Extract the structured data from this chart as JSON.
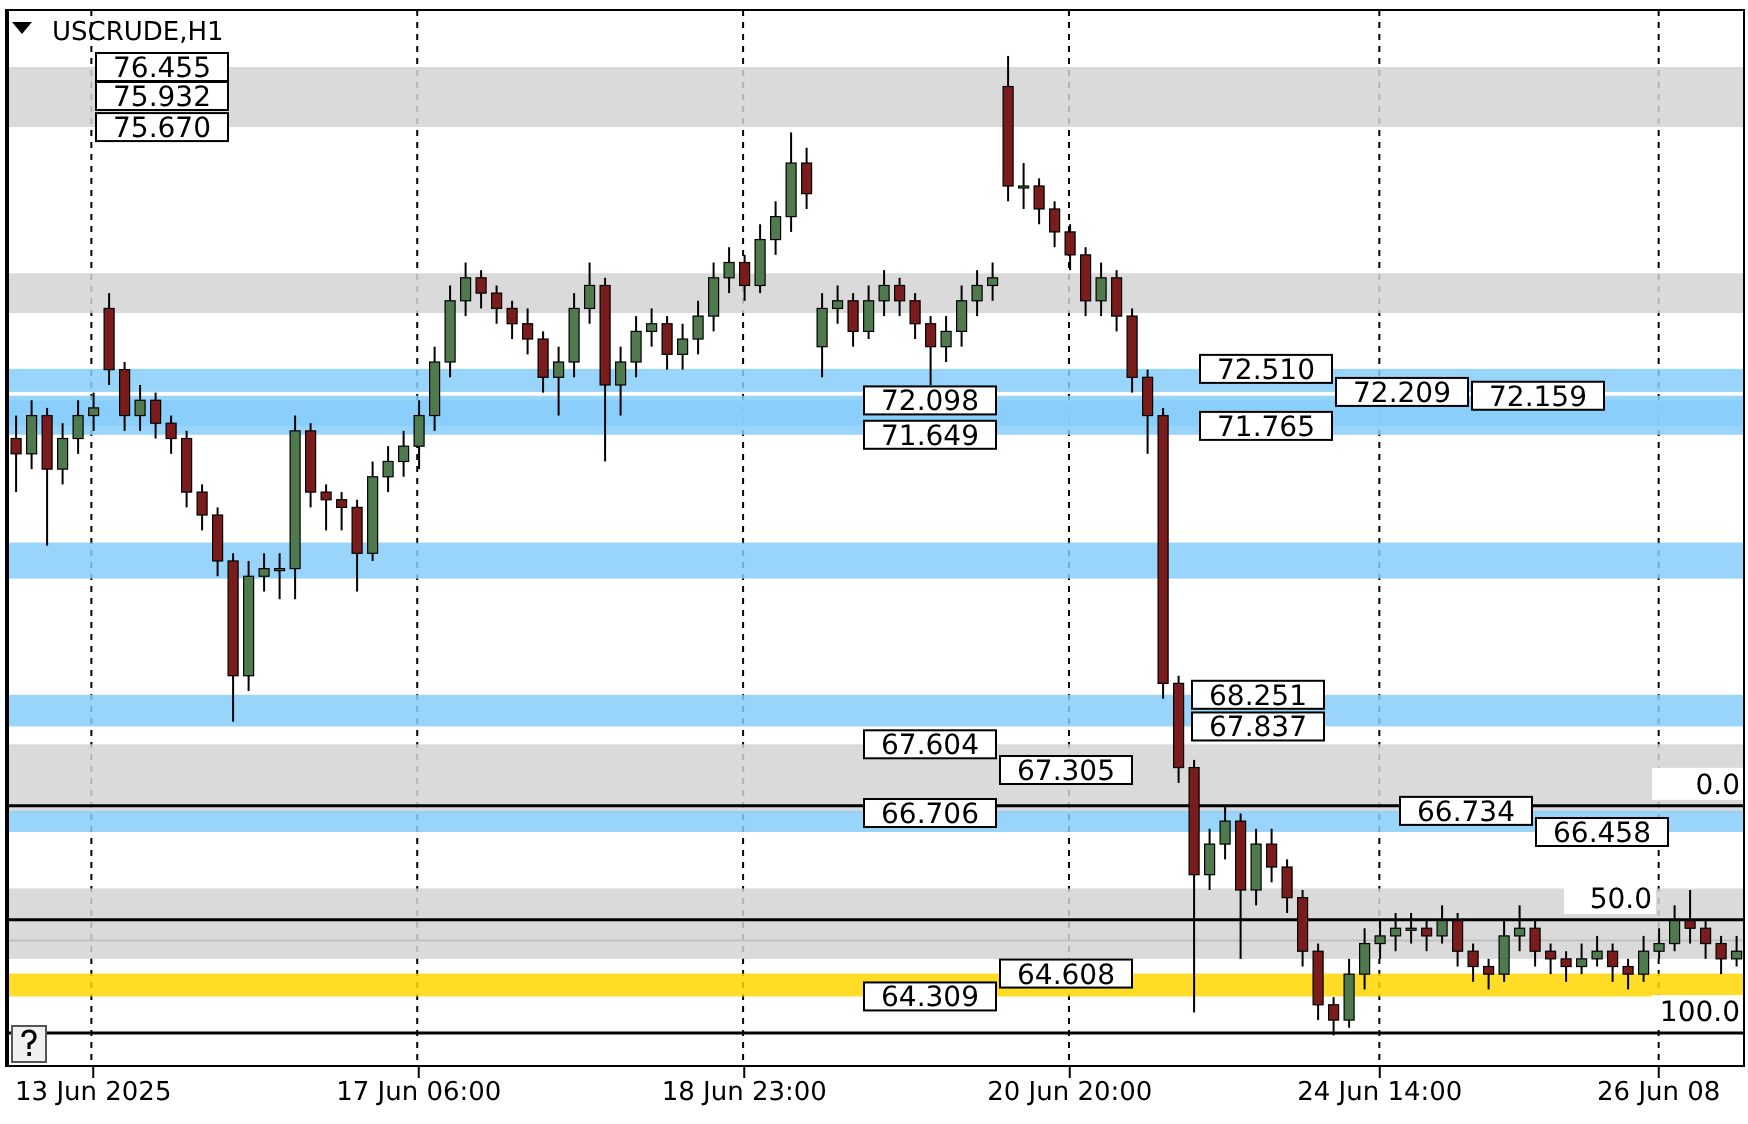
{
  "chart_data": {
    "type": "candlestick",
    "title": "USCRUDE,H1",
    "categories": [
      null,
      null,
      null,
      null,
      null,
      "13 Jun 2025",
      null,
      null,
      null,
      null,
      null,
      null,
      null,
      null,
      null,
      null,
      null,
      null,
      null,
      null,
      null,
      null,
      null,
      null,
      null,
      null,
      "17 Jun 06:00",
      null,
      null,
      null,
      null,
      null,
      null,
      null,
      null,
      null,
      null,
      null,
      null,
      null,
      null,
      null,
      null,
      null,
      null,
      null,
      null,
      "18 Jun 23:00",
      null,
      null,
      null,
      null,
      null,
      null,
      null,
      null,
      null,
      null,
      null,
      null,
      null,
      null,
      null,
      null,
      null,
      null,
      null,
      null,
      "20 Jun 20:00",
      null,
      null,
      null,
      null,
      null,
      null,
      null,
      null,
      null,
      null,
      null,
      null,
      null,
      null,
      null,
      null,
      null,
      null,
      null,
      "24 Jun 14:00",
      null,
      null,
      null,
      null,
      null,
      null,
      null,
      null,
      null,
      null,
      null,
      null,
      null,
      null,
      null,
      null,
      null,
      "26 Jun 08",
      null,
      null,
      null,
      null,
      null
    ],
    "ohlc": [
      [
        71.6,
        71.9,
        70.9,
        71.4
      ],
      [
        71.4,
        72.1,
        71.2,
        71.9
      ],
      [
        71.9,
        72.0,
        70.2,
        71.2
      ],
      [
        71.2,
        71.8,
        71.0,
        71.6
      ],
      [
        71.6,
        72.1,
        71.4,
        71.9
      ],
      [
        71.9,
        72.2,
        71.7,
        72.0
      ],
      [
        73.3,
        73.5,
        72.3,
        72.5
      ],
      [
        72.5,
        72.6,
        71.7,
        71.9
      ],
      [
        71.9,
        72.3,
        71.7,
        72.1
      ],
      [
        72.1,
        72.2,
        71.6,
        71.8
      ],
      [
        71.8,
        71.9,
        71.4,
        71.6
      ],
      [
        71.6,
        71.7,
        70.7,
        70.9
      ],
      [
        70.9,
        71.0,
        70.4,
        70.6
      ],
      [
        70.6,
        70.7,
        69.8,
        70.0
      ],
      [
        70.0,
        70.1,
        67.9,
        68.5
      ],
      [
        68.5,
        70.0,
        68.3,
        69.8
      ],
      [
        69.8,
        70.1,
        69.6,
        69.9
      ],
      [
        69.9,
        70.1,
        69.5,
        69.9
      ],
      [
        69.9,
        71.9,
        69.5,
        71.7
      ],
      [
        71.7,
        71.8,
        70.7,
        70.9
      ],
      [
        70.9,
        71.0,
        70.4,
        70.8
      ],
      [
        70.8,
        70.9,
        70.4,
        70.7
      ],
      [
        70.7,
        70.8,
        69.6,
        70.1
      ],
      [
        70.1,
        71.3,
        70.0,
        71.1
      ],
      [
        71.1,
        71.5,
        70.9,
        71.3
      ],
      [
        71.3,
        71.7,
        71.1,
        71.5
      ],
      [
        71.5,
        72.1,
        71.2,
        71.9
      ],
      [
        71.9,
        72.8,
        71.7,
        72.6
      ],
      [
        72.6,
        73.6,
        72.4,
        73.4
      ],
      [
        73.4,
        73.9,
        73.2,
        73.7
      ],
      [
        73.7,
        73.8,
        73.3,
        73.5
      ],
      [
        73.5,
        73.6,
        73.1,
        73.3
      ],
      [
        73.3,
        73.4,
        72.9,
        73.1
      ],
      [
        73.1,
        73.3,
        72.7,
        72.9
      ],
      [
        72.9,
        73.0,
        72.2,
        72.4
      ],
      [
        72.4,
        72.8,
        71.9,
        72.6
      ],
      [
        72.6,
        73.5,
        72.4,
        73.3
      ],
      [
        73.3,
        73.9,
        73.1,
        73.6
      ],
      [
        73.6,
        73.7,
        71.3,
        72.3
      ],
      [
        72.3,
        72.8,
        71.9,
        72.6
      ],
      [
        72.6,
        73.2,
        72.4,
        73.0
      ],
      [
        73.0,
        73.3,
        72.8,
        73.1
      ],
      [
        73.1,
        73.2,
        72.5,
        72.7
      ],
      [
        72.7,
        73.1,
        72.5,
        72.9
      ],
      [
        72.9,
        73.4,
        72.7,
        73.2
      ],
      [
        73.2,
        73.9,
        73.0,
        73.7
      ],
      [
        73.7,
        74.1,
        73.5,
        73.9
      ],
      [
        73.9,
        74.0,
        73.4,
        73.6
      ],
      [
        73.6,
        74.4,
        73.5,
        74.2
      ],
      [
        74.2,
        74.7,
        74.0,
        74.5
      ],
      [
        74.5,
        75.6,
        74.3,
        75.2
      ],
      [
        75.2,
        75.4,
        74.6,
        74.8
      ],
      [
        72.8,
        73.5,
        72.4,
        73.3
      ],
      [
        73.3,
        73.6,
        73.1,
        73.4
      ],
      [
        73.4,
        73.5,
        72.8,
        73.0
      ],
      [
        73.0,
        73.6,
        72.9,
        73.4
      ],
      [
        73.4,
        73.8,
        73.2,
        73.6
      ],
      [
        73.6,
        73.7,
        73.2,
        73.4
      ],
      [
        73.4,
        73.5,
        72.9,
        73.1
      ],
      [
        73.1,
        73.2,
        72.3,
        72.8
      ],
      [
        72.8,
        73.2,
        72.6,
        73.0
      ],
      [
        73.0,
        73.6,
        72.8,
        73.4
      ],
      [
        73.4,
        73.8,
        73.2,
        73.6
      ],
      [
        73.6,
        73.9,
        73.4,
        73.7
      ],
      [
        76.2,
        76.6,
        74.7,
        74.9
      ],
      [
        74.9,
        75.2,
        74.6,
        74.9
      ],
      [
        74.9,
        75.0,
        74.4,
        74.6
      ],
      [
        74.6,
        74.7,
        74.1,
        74.3
      ],
      [
        74.3,
        74.4,
        73.8,
        74.0
      ],
      [
        74.0,
        74.1,
        73.2,
        73.4
      ],
      [
        73.4,
        73.9,
        73.2,
        73.7
      ],
      [
        73.7,
        73.8,
        73.0,
        73.2
      ],
      [
        73.2,
        73.3,
        72.2,
        72.4
      ],
      [
        72.4,
        72.5,
        71.4,
        71.9
      ],
      [
        71.9,
        72.0,
        68.2,
        68.4
      ],
      [
        68.4,
        68.5,
        67.1,
        67.3
      ],
      [
        67.3,
        67.4,
        64.1,
        65.9
      ],
      [
        65.9,
        66.5,
        65.7,
        66.3
      ],
      [
        66.3,
        66.8,
        66.1,
        66.6
      ],
      [
        66.6,
        66.7,
        64.8,
        65.7
      ],
      [
        65.7,
        66.5,
        65.5,
        66.3
      ],
      [
        66.3,
        66.5,
        65.8,
        66.0
      ],
      [
        66.0,
        66.1,
        65.4,
        65.6
      ],
      [
        65.6,
        65.7,
        64.7,
        64.9
      ],
      [
        64.9,
        65.0,
        64.0,
        64.2
      ],
      [
        64.2,
        64.3,
        63.8,
        64.0
      ],
      [
        64.0,
        64.8,
        63.9,
        64.6
      ],
      [
        64.6,
        65.2,
        64.4,
        65.0
      ],
      [
        65.0,
        65.3,
        64.8,
        65.1
      ],
      [
        65.1,
        65.4,
        64.9,
        65.2
      ],
      [
        65.2,
        65.4,
        65.0,
        65.2
      ],
      [
        65.2,
        65.3,
        64.9,
        65.1
      ],
      [
        65.1,
        65.5,
        65.0,
        65.3
      ],
      [
        65.3,
        65.4,
        64.7,
        64.9
      ],
      [
        64.9,
        65.0,
        64.5,
        64.7
      ],
      [
        64.7,
        64.8,
        64.4,
        64.6
      ],
      [
        64.6,
        65.3,
        64.5,
        65.1
      ],
      [
        65.1,
        65.5,
        64.9,
        65.2
      ],
      [
        65.2,
        65.3,
        64.7,
        64.9
      ],
      [
        64.9,
        65.0,
        64.6,
        64.8
      ],
      [
        64.8,
        64.9,
        64.5,
        64.7
      ],
      [
        64.7,
        65.0,
        64.6,
        64.8
      ],
      [
        64.8,
        65.1,
        64.7,
        64.9
      ],
      [
        64.9,
        65.0,
        64.5,
        64.7
      ],
      [
        64.7,
        64.8,
        64.4,
        64.6
      ],
      [
        64.6,
        65.1,
        64.5,
        64.9
      ],
      [
        64.9,
        65.2,
        64.8,
        65.0
      ],
      [
        65.0,
        65.5,
        64.9,
        65.3
      ],
      [
        65.3,
        65.7,
        65.0,
        65.2
      ],
      [
        65.2,
        65.3,
        64.8,
        65.0
      ],
      [
        65.0,
        65.1,
        64.6,
        64.8
      ],
      [
        64.8,
        65.1,
        64.7,
        64.9
      ]
    ],
    "ylim": [
      63.4,
      77.2
    ],
    "grid": "x",
    "yticks": [
      72.098,
      71.649,
      67.604,
      66.706,
      64.309
    ],
    "bands": [
      {
        "axis": "y",
        "from": 75.67,
        "to": 76.455,
        "color": "#d3d3d3"
      },
      {
        "axis": "y",
        "from": 73.24,
        "to": 73.76,
        "color": "#d3d3d3"
      },
      {
        "axis": "y",
        "from": 71.765,
        "to": 72.159,
        "color": "#87cefa"
      },
      {
        "axis": "y",
        "from": 69.77,
        "to": 70.24,
        "color": "#87cefa"
      },
      {
        "axis": "y",
        "from": 72.209,
        "to": 72.51,
        "color": "#87cefa"
      },
      {
        "axis": "y",
        "from": 71.649,
        "to": 72.098,
        "color": "#87cefa"
      },
      {
        "axis": "y",
        "from": 66.706,
        "to": 67.604,
        "color": "#d3d3d3"
      },
      {
        "axis": "y",
        "from": 64.8,
        "to": 65.72,
        "color": "#d3d3d3"
      },
      {
        "axis": "y",
        "from": 67.837,
        "to": 68.251,
        "color": "#87cefa"
      },
      {
        "axis": "y",
        "from": 66.458,
        "to": 66.734,
        "color": "#87cefa"
      },
      {
        "axis": "y",
        "from": 64.309,
        "to": 64.608,
        "color": "#ffd700"
      }
    ],
    "ref_lines": [
      {
        "axis": "y",
        "value": 66.8,
        "color": "#000000"
      },
      {
        "axis": "y",
        "value": 65.31,
        "color": "#000000"
      },
      {
        "axis": "y",
        "value": 63.83,
        "color": "#000000"
      },
      {
        "axis": "y",
        "value": 65.04,
        "color": "#c0c0c0"
      }
    ],
    "annotations": [
      {
        "text": "76.455",
        "y": 76.455
      },
      "75.932",
      {
        "text": "75.670",
        "y": 75.67
      },
      {
        "text": "72.159",
        "y": 72.159
      },
      {
        "text": "71.765",
        "y": 71.765
      },
      {
        "text": "72.510",
        "y": 72.51
      },
      {
        "text": "72.209",
        "y": 72.209
      },
      "67.305",
      {
        "text": "68.251",
        "y": 68.251
      },
      {
        "text": "67.837",
        "y": 67.837
      },
      {
        "text": "66.734",
        "y": 66.734
      },
      {
        "text": "66.458",
        "y": 66.458
      },
      {
        "text": "64.608",
        "y": 64.608
      },
      {
        "text": "0.0",
        "y": 66.8
      },
      {
        "text": "50.0",
        "y": 65.31
      },
      {
        "text": "100.0",
        "y": 63.83
      }
    ]
  }
}
